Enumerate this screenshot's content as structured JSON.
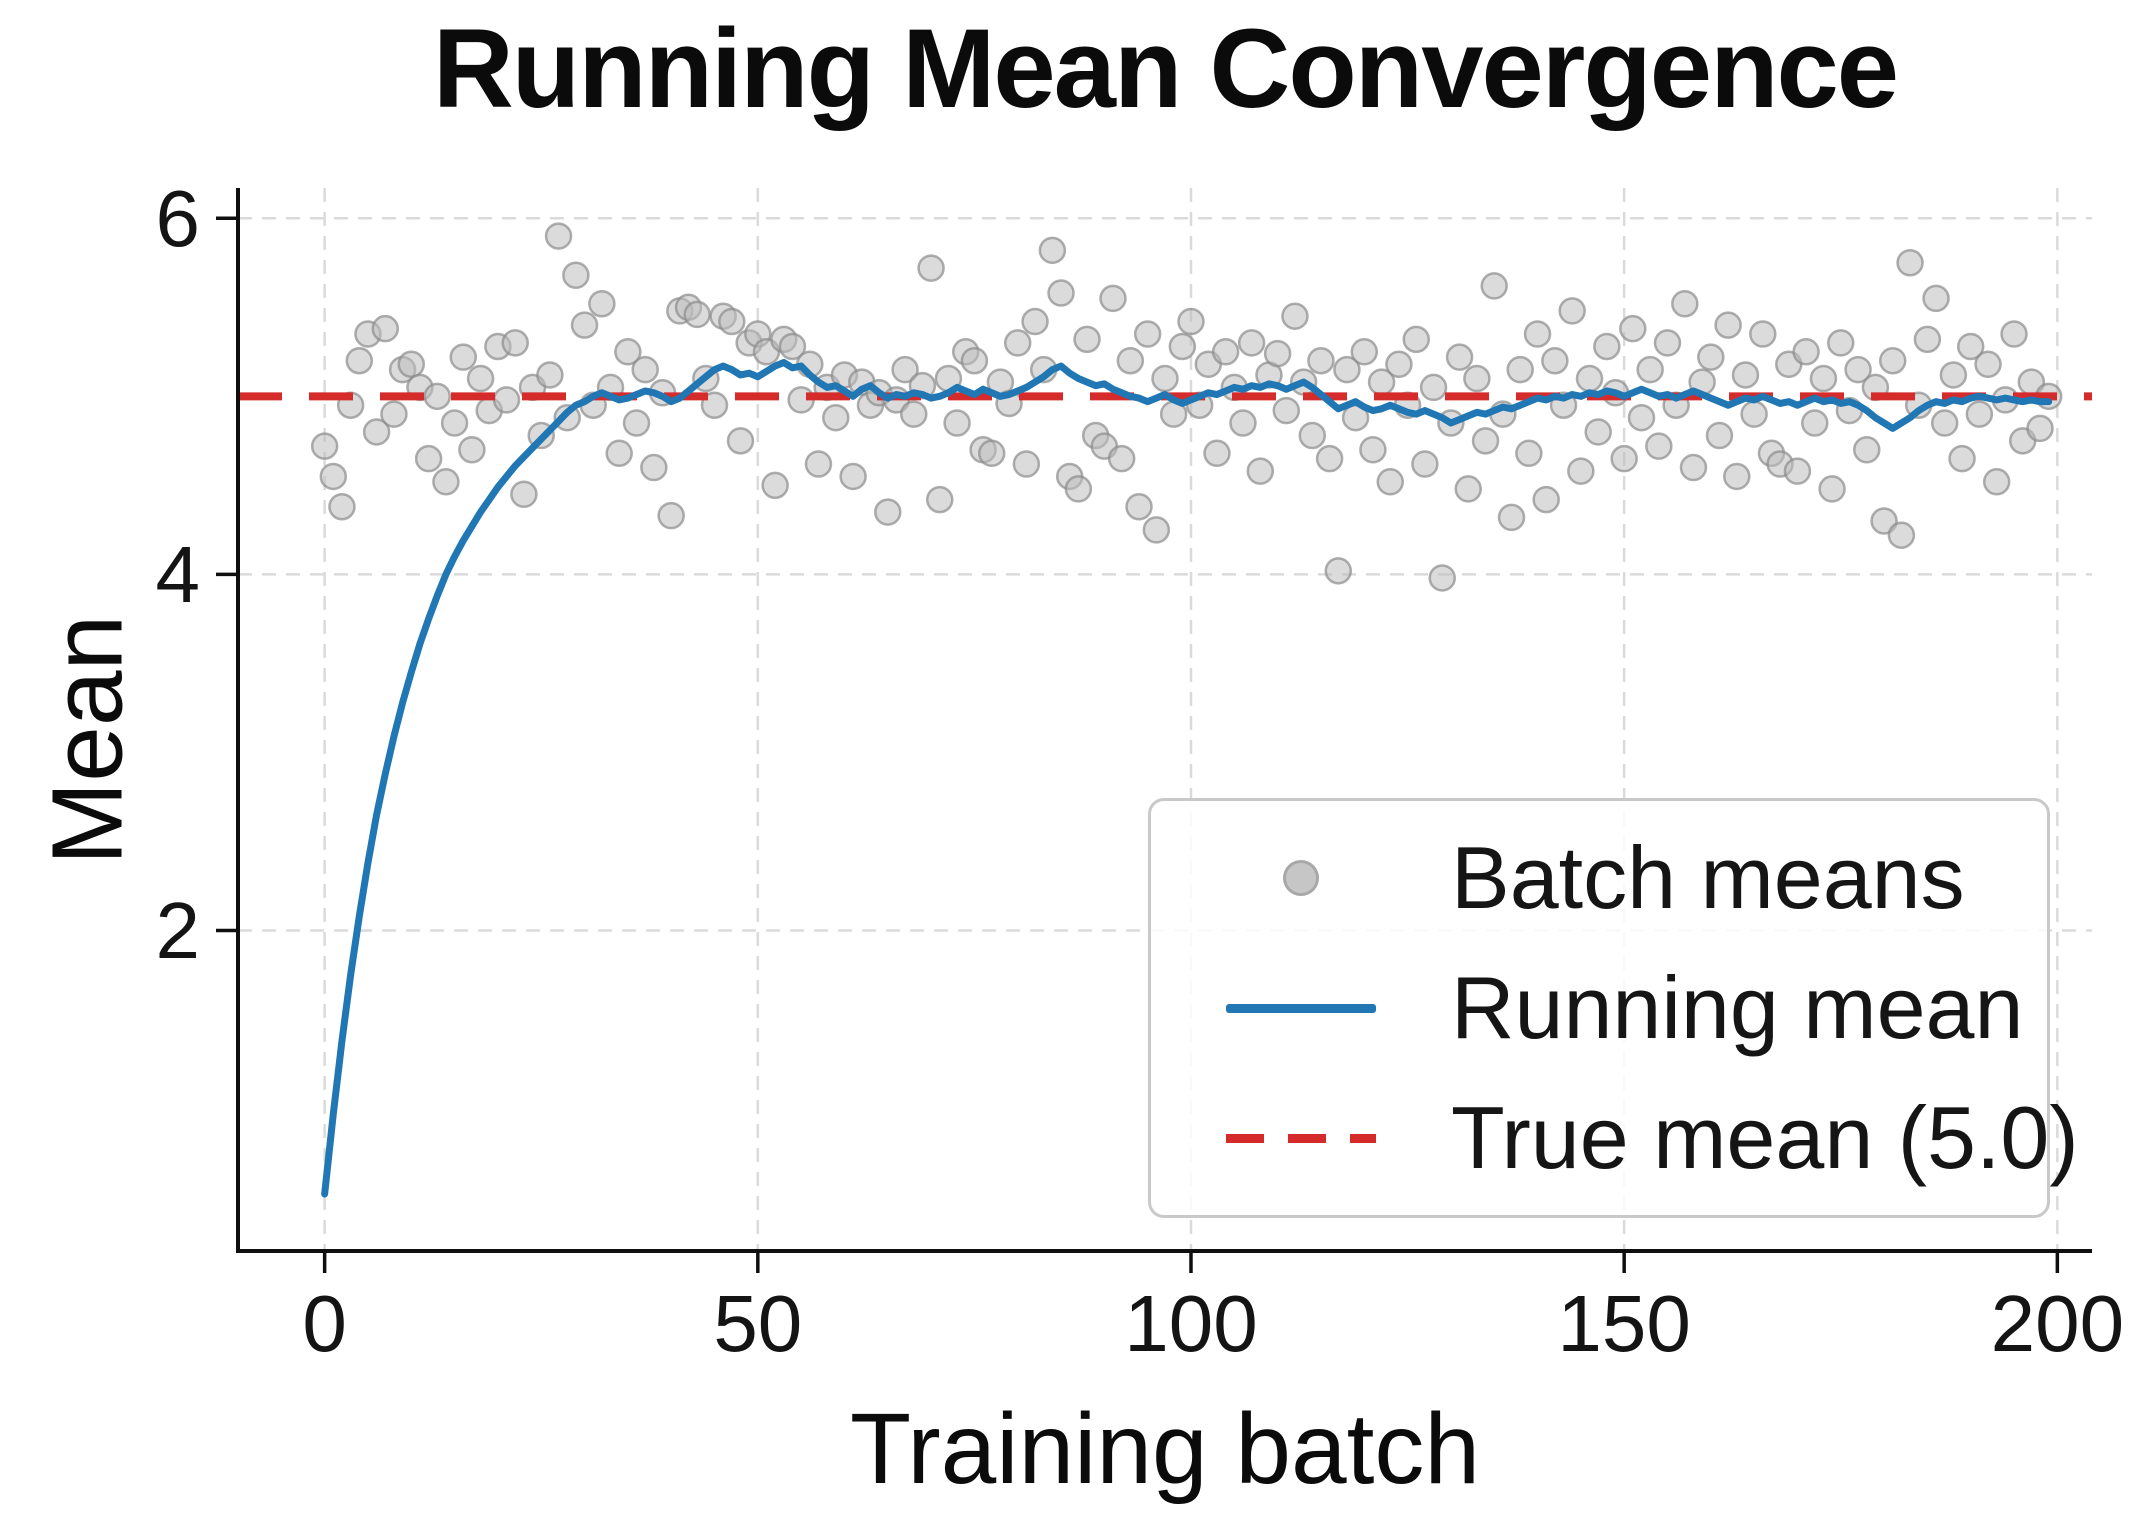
{
  "chart_data": {
    "type": "scatter",
    "title": "Running Mean Convergence",
    "xlabel": "Training batch",
    "ylabel": "Mean",
    "xlim": [
      -10,
      204
    ],
    "ylim": [
      0.2,
      6.17
    ],
    "xticks": [
      0,
      50,
      100,
      150,
      200
    ],
    "yticks": [
      2,
      4,
      6
    ],
    "grid": "dashed-lightgray",
    "legend_position": "lower right",
    "x_start": 0,
    "x_step": 1,
    "true_mean": 5.0,
    "series": [
      {
        "name": "Batch means",
        "type": "scatter",
        "color": "#bdbdbd",
        "values": [
          4.72,
          4.55,
          4.38,
          4.95,
          5.2,
          5.35,
          4.8,
          5.38,
          4.9,
          5.15,
          5.18,
          5.05,
          4.65,
          5.0,
          4.52,
          4.85,
          5.22,
          4.7,
          5.1,
          4.92,
          5.28,
          4.98,
          5.3,
          4.45,
          5.05,
          4.78,
          5.12,
          5.9,
          4.88,
          5.68,
          5.4,
          4.95,
          5.52,
          5.05,
          4.68,
          5.25,
          4.85,
          5.15,
          4.6,
          5.02,
          4.33,
          5.48,
          5.5,
          5.46,
          5.1,
          4.95,
          5.45,
          5.42,
          4.75,
          5.3,
          5.35,
          5.25,
          4.5,
          5.32,
          5.28,
          4.98,
          5.18,
          4.62,
          5.05,
          4.88,
          5.12,
          4.55,
          5.08,
          4.95,
          5.02,
          4.35,
          4.98,
          5.15,
          4.9,
          5.06,
          5.72,
          4.42,
          5.1,
          4.85,
          5.25,
          5.2,
          4.7,
          4.68,
          5.08,
          4.96,
          5.3,
          4.62,
          5.42,
          5.15,
          5.82,
          5.58,
          4.55,
          4.48,
          5.32,
          4.78,
          4.72,
          5.55,
          4.65,
          5.2,
          4.38,
          5.35,
          4.25,
          5.1,
          4.9,
          5.28,
          5.42,
          4.95,
          5.18,
          4.68,
          5.25,
          5.05,
          4.85,
          5.3,
          4.58,
          5.12,
          5.24,
          4.92,
          5.45,
          5.08,
          4.78,
          5.2,
          4.65,
          4.02,
          5.15,
          4.88,
          5.25,
          4.7,
          5.08,
          4.52,
          5.18,
          4.95,
          5.32,
          4.62,
          5.05,
          3.98,
          4.85,
          5.22,
          4.48,
          5.1,
          4.75,
          5.62,
          4.9,
          4.32,
          5.15,
          4.68,
          5.35,
          4.42,
          5.2,
          4.95,
          5.48,
          4.58,
          5.1,
          4.8,
          5.28,
          5.02,
          4.65,
          5.38,
          4.88,
          5.15,
          4.72,
          5.3,
          4.95,
          5.52,
          4.6,
          5.08,
          5.22,
          4.78,
          5.4,
          4.55,
          5.12,
          4.9,
          5.35,
          4.68,
          4.62,
          5.18,
          4.58,
          5.25,
          4.85,
          5.1,
          4.48,
          5.3,
          4.92,
          5.15,
          4.7,
          5.05,
          4.3,
          5.2,
          4.22,
          5.75,
          4.95,
          5.32,
          5.55,
          4.85,
          5.12,
          4.65,
          5.28,
          4.9,
          5.18,
          4.52,
          4.98,
          5.35,
          4.75,
          5.08,
          4.82,
          5.0
        ]
      },
      {
        "name": "Running mean",
        "type": "line",
        "color": "#2077b4",
        "values": [
          0.52,
          0.97,
          1.38,
          1.75,
          2.08,
          2.38,
          2.65,
          2.88,
          3.09,
          3.28,
          3.45,
          3.61,
          3.75,
          3.88,
          4.0,
          4.1,
          4.19,
          4.27,
          4.35,
          4.42,
          4.49,
          4.55,
          4.61,
          4.66,
          4.71,
          4.76,
          4.81,
          4.86,
          4.91,
          4.95,
          4.97,
          5.0,
          5.02,
          5.0,
          4.98,
          4.99,
          5.01,
          5.03,
          5.02,
          5.0,
          4.97,
          4.99,
          5.03,
          5.07,
          5.11,
          5.15,
          5.17,
          5.15,
          5.12,
          5.13,
          5.11,
          5.14,
          5.17,
          5.19,
          5.16,
          5.17,
          5.12,
          5.08,
          5.05,
          5.06,
          5.03,
          5.0,
          5.04,
          5.06,
          5.02,
          4.99,
          5.01,
          5.0,
          5.02,
          5.01,
          4.99,
          5.0,
          5.02,
          5.05,
          5.03,
          5.01,
          5.04,
          5.02,
          5.0,
          5.01,
          5.03,
          5.05,
          5.08,
          5.11,
          5.15,
          5.17,
          5.13,
          5.1,
          5.08,
          5.06,
          5.07,
          5.04,
          5.02,
          5.0,
          4.99,
          4.97,
          4.99,
          5.01,
          4.98,
          4.96,
          4.98,
          5.0,
          5.02,
          5.01,
          5.03,
          5.05,
          5.04,
          5.06,
          5.05,
          5.07,
          5.06,
          5.04,
          5.06,
          5.08,
          5.05,
          5.01,
          4.97,
          4.93,
          4.95,
          4.97,
          4.94,
          4.92,
          4.93,
          4.95,
          4.93,
          4.91,
          4.9,
          4.92,
          4.9,
          4.88,
          4.85,
          4.87,
          4.89,
          4.91,
          4.9,
          4.92,
          4.94,
          4.93,
          4.95,
          4.97,
          4.99,
          4.98,
          5.0,
          4.99,
          5.01,
          5.0,
          5.02,
          5.01,
          5.03,
          5.02,
          5.0,
          5.02,
          5.04,
          5.02,
          5.0,
          5.01,
          4.99,
          5.01,
          5.03,
          5.01,
          4.99,
          4.97,
          4.95,
          4.97,
          4.99,
          4.98,
          5.0,
          4.98,
          4.96,
          4.97,
          4.95,
          4.97,
          4.99,
          4.97,
          4.98,
          4.96,
          4.97,
          4.95,
          4.92,
          4.88,
          4.85,
          4.82,
          4.85,
          4.88,
          4.92,
          4.95,
          4.97,
          4.96,
          4.98,
          4.97,
          4.99,
          5.0,
          4.99,
          4.98,
          4.99,
          4.98,
          4.97,
          4.98,
          4.97,
          4.97
        ]
      },
      {
        "name": "True mean (5.0)",
        "type": "hline",
        "color": "#d62b2b",
        "style": "dashed",
        "value": 5.0
      }
    ]
  },
  "legend": {
    "items": [
      "Batch means",
      "Running mean",
      "True mean (5.0)"
    ]
  },
  "colors": {
    "running_mean_blue": "#2077b4",
    "true_mean_red": "#d62b2b",
    "batch_means_gray": "#bdbdbd",
    "grid_gray": "#dadada",
    "text_black": "#0b0b0b"
  }
}
